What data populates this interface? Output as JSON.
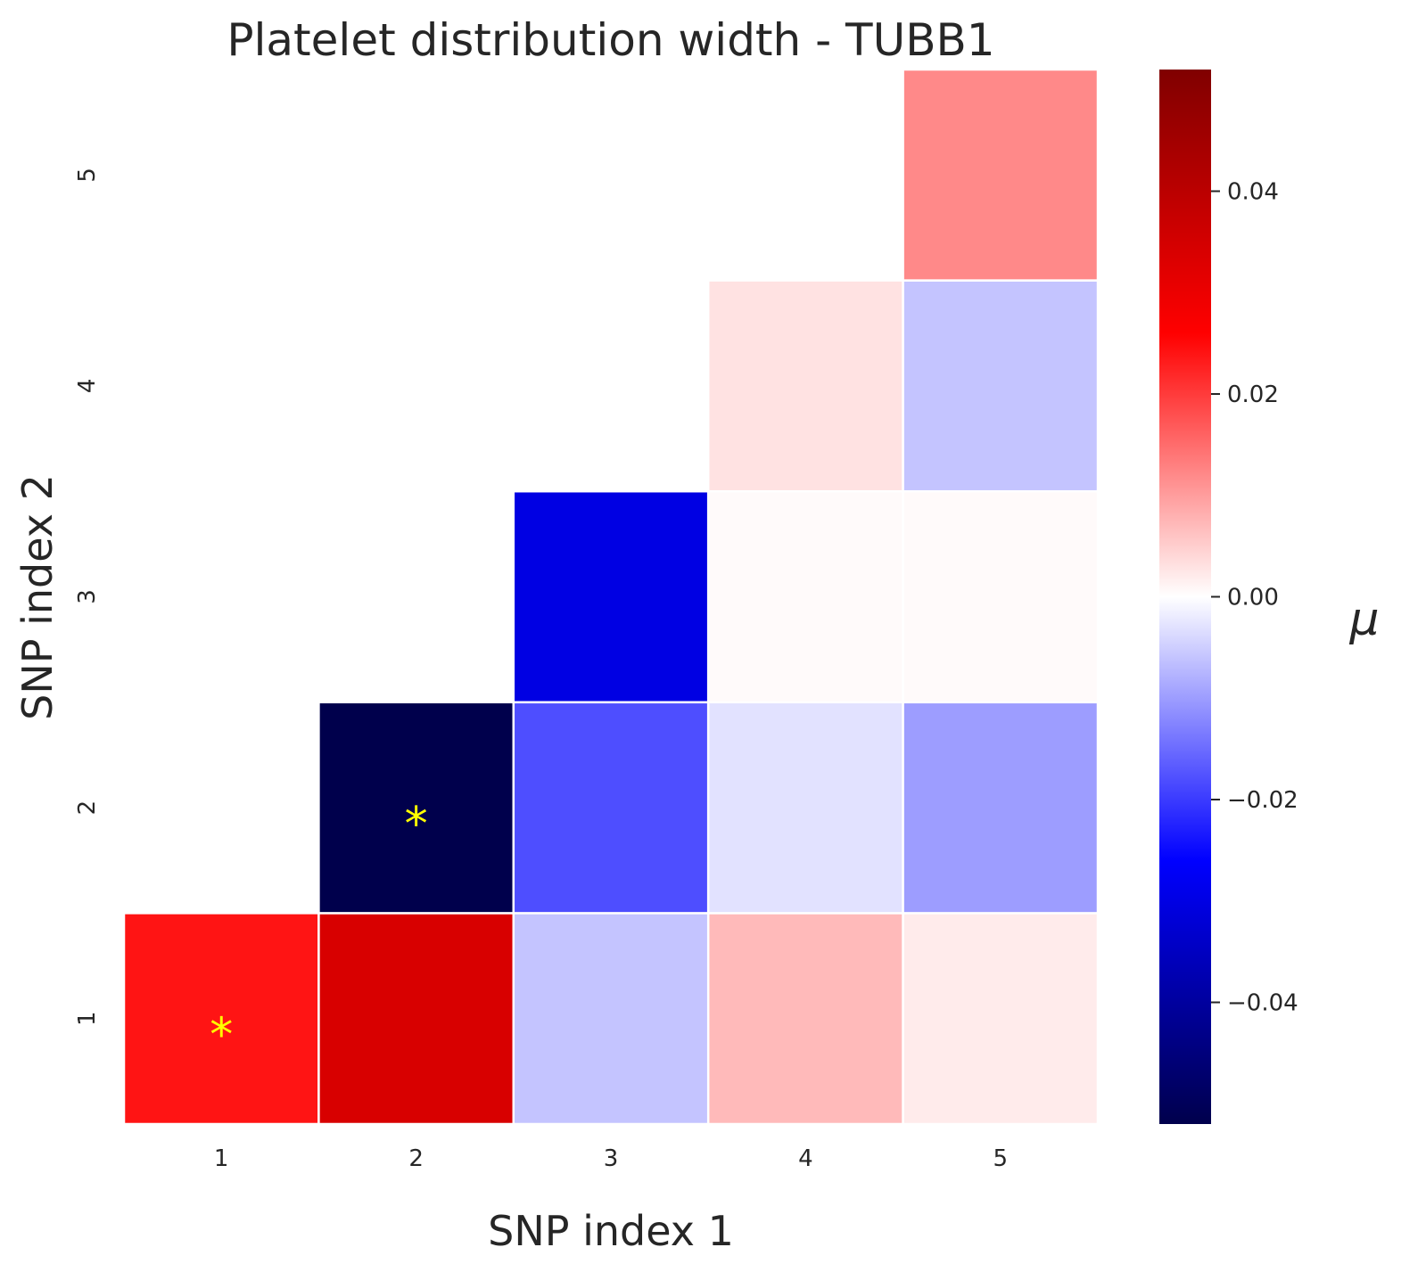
{
  "chart_data": {
    "type": "heatmap",
    "title": "Platelet distribution width - TUBB1",
    "xlabel": "SNP index 1",
    "ylabel": "SNP index 2",
    "x_categories": [
      "1",
      "2",
      "3",
      "4",
      "5"
    ],
    "y_categories": [
      "1",
      "2",
      "3",
      "4",
      "5"
    ],
    "colormap": "seismic",
    "vmin": -0.052,
    "vmax": 0.052,
    "colorbar": {
      "label": "μ",
      "ticks": [
        0.04,
        0.02,
        0.0,
        -0.02,
        -0.04
      ],
      "tick_labels": [
        "0.04",
        "0.02",
        "0.00",
        "−0.02",
        "−0.04"
      ]
    },
    "cells": [
      {
        "x": "1",
        "y": "1",
        "value": 0.024,
        "significant": true
      },
      {
        "x": "2",
        "y": "1",
        "value": 0.034,
        "significant": false
      },
      {
        "x": "3",
        "y": "1",
        "value": -0.006,
        "significant": false
      },
      {
        "x": "4",
        "y": "1",
        "value": 0.007,
        "significant": false
      },
      {
        "x": "5",
        "y": "1",
        "value": 0.002,
        "significant": false
      },
      {
        "x": "2",
        "y": "2",
        "value": -0.052,
        "significant": true
      },
      {
        "x": "3",
        "y": "2",
        "value": -0.018,
        "significant": false
      },
      {
        "x": "4",
        "y": "2",
        "value": -0.003,
        "significant": false
      },
      {
        "x": "5",
        "y": "2",
        "value": -0.01,
        "significant": false
      },
      {
        "x": "3",
        "y": "3",
        "value": -0.03,
        "significant": false
      },
      {
        "x": "4",
        "y": "3",
        "value": 0.0005,
        "significant": false
      },
      {
        "x": "5",
        "y": "3",
        "value": 0.0005,
        "significant": false
      },
      {
        "x": "4",
        "y": "4",
        "value": 0.003,
        "significant": false
      },
      {
        "x": "5",
        "y": "4",
        "value": -0.006,
        "significant": false
      },
      {
        "x": "5",
        "y": "5",
        "value": 0.012,
        "significant": false
      }
    ],
    "significance_marker": "*",
    "grid": false
  }
}
